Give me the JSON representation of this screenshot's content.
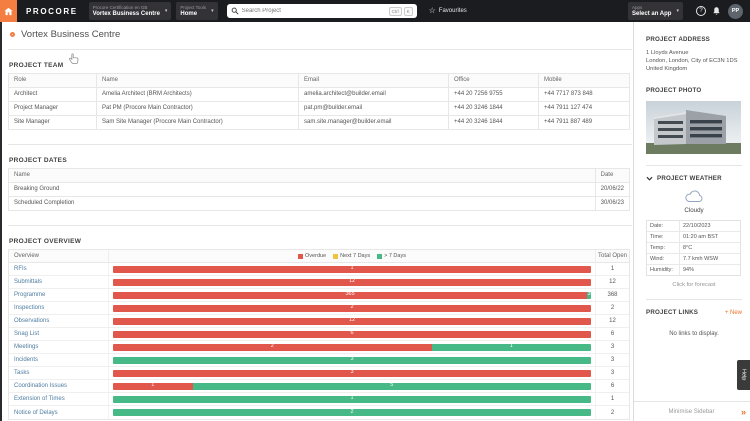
{
  "topnav": {
    "brand": "PROCORE",
    "project_picker": {
      "label": "Procore Certification en GB",
      "value": "Vortex Business Centre"
    },
    "tool_picker": {
      "label": "Project Tools",
      "value": "Home"
    },
    "search": {
      "placeholder": "Search Project",
      "keys": [
        "Ctrl",
        "K"
      ]
    },
    "favourites_label": "Favourites",
    "apps_picker": {
      "label": "Apps",
      "value": "Select an App"
    },
    "avatar_initials": "PP"
  },
  "page": {
    "title": "Vortex Business Centre"
  },
  "team": {
    "heading": "PROJECT TEAM",
    "columns": {
      "role": "Role",
      "name": "Name",
      "email": "Email",
      "office": "Office",
      "mobile": "Mobile"
    },
    "rows": [
      {
        "role": "Architect",
        "name": "Amelia Architect (BRM Architects)",
        "email": "amelia.architect@builder.email",
        "office": "+44 20 7256 9755",
        "mobile": "+44 7717 873 848"
      },
      {
        "role": "Project Manager",
        "name": "Pat PM (Procore Main Contractor)",
        "email": "pat.pm@builder.email",
        "office": "+44 20 3246 1844",
        "mobile": "+44 7911 127 474"
      },
      {
        "role": "Site Manager",
        "name": "Sam Site Manager (Procore Main Contractor)",
        "email": "sam.site.manager@builder.email",
        "office": "+44 20 3246 1844",
        "mobile": "+44 7911 887 489"
      }
    ]
  },
  "dates": {
    "heading": "PROJECT DATES",
    "columns": {
      "name": "Name",
      "date": "Date"
    },
    "rows": [
      {
        "name": "Breaking Ground",
        "date": "20/06/22"
      },
      {
        "name": "Scheduled Completion",
        "date": "30/06/23"
      }
    ]
  },
  "overview_heading": "PROJECT OVERVIEW",
  "chart_data": {
    "type": "bar",
    "orientation": "horizontal_stacked",
    "title": "PROJECT OVERVIEW",
    "columns": {
      "category": "Overview",
      "total": "Total Open"
    },
    "legend": [
      {
        "key": "overdue",
        "label": "Overdue",
        "color": "#e2574c"
      },
      {
        "key": "next7",
        "label": "Next 7 Days",
        "color": "#f0c33c"
      },
      {
        "key": "beyond7",
        "label": "> 7 Days",
        "color": "#47b987"
      }
    ],
    "rows": [
      {
        "category": "RFIs",
        "overdue": 1,
        "next7": 0,
        "beyond7": 0,
        "total": 1
      },
      {
        "category": "Submittals",
        "overdue": 12,
        "next7": 0,
        "beyond7": 0,
        "total": 12
      },
      {
        "category": "Programme",
        "overdue": 365,
        "next7": 0,
        "beyond7": 3,
        "total": 368
      },
      {
        "category": "Inspections",
        "overdue": 2,
        "next7": 0,
        "beyond7": 0,
        "total": 2
      },
      {
        "category": "Observations",
        "overdue": 12,
        "next7": 0,
        "beyond7": 0,
        "total": 12
      },
      {
        "category": "Snag List",
        "overdue": 6,
        "next7": 0,
        "beyond7": 0,
        "total": 6
      },
      {
        "category": "Meetings",
        "overdue": 2,
        "next7": 0,
        "beyond7": 1,
        "total": 3
      },
      {
        "category": "Incidents",
        "overdue": 0,
        "next7": 0,
        "beyond7": 3,
        "total": 3
      },
      {
        "category": "Tasks",
        "overdue": 3,
        "next7": 0,
        "beyond7": 0,
        "total": 3
      },
      {
        "category": "Coordination Issues",
        "overdue": 1,
        "next7": 0,
        "beyond7": 5,
        "total": 6
      },
      {
        "category": "Extension of Times",
        "overdue": 0,
        "next7": 0,
        "beyond7": 1,
        "total": 1
      },
      {
        "category": "Notice of Delays",
        "overdue": 0,
        "next7": 0,
        "beyond7": 2,
        "total": 2
      }
    ]
  },
  "sidebar": {
    "address": {
      "heading": "PROJECT ADDRESS",
      "lines": [
        "1 Lloyds Avenue",
        "London, London, City of EC3N 1DS",
        "United Kingdom"
      ]
    },
    "photo": {
      "heading": "PROJECT PHOTO"
    },
    "weather": {
      "heading": "PROJECT WEATHER",
      "condition": "Cloudy",
      "rows": [
        {
          "label": "Date:",
          "value": "22/10/2023"
        },
        {
          "label": "Time:",
          "value": "01:20 am BST"
        },
        {
          "label": "Temp:",
          "value": "8°C"
        },
        {
          "label": "Wind:",
          "value": "7.7 kmh WSW"
        },
        {
          "label": "Humidity:",
          "value": "94%"
        }
      ],
      "forecast_link": "Click for forecast"
    },
    "links": {
      "heading": "PROJECT LINKS",
      "new_label": "+ New",
      "empty_text": "No links to display."
    },
    "help_tab": "Help",
    "minimise_label": "Minimise Sidebar"
  },
  "colors": {
    "accent_orange": "#f47e42",
    "overdue_red": "#e2574c",
    "next7_yellow": "#f0c33c",
    "beyond7_green": "#47b987"
  }
}
